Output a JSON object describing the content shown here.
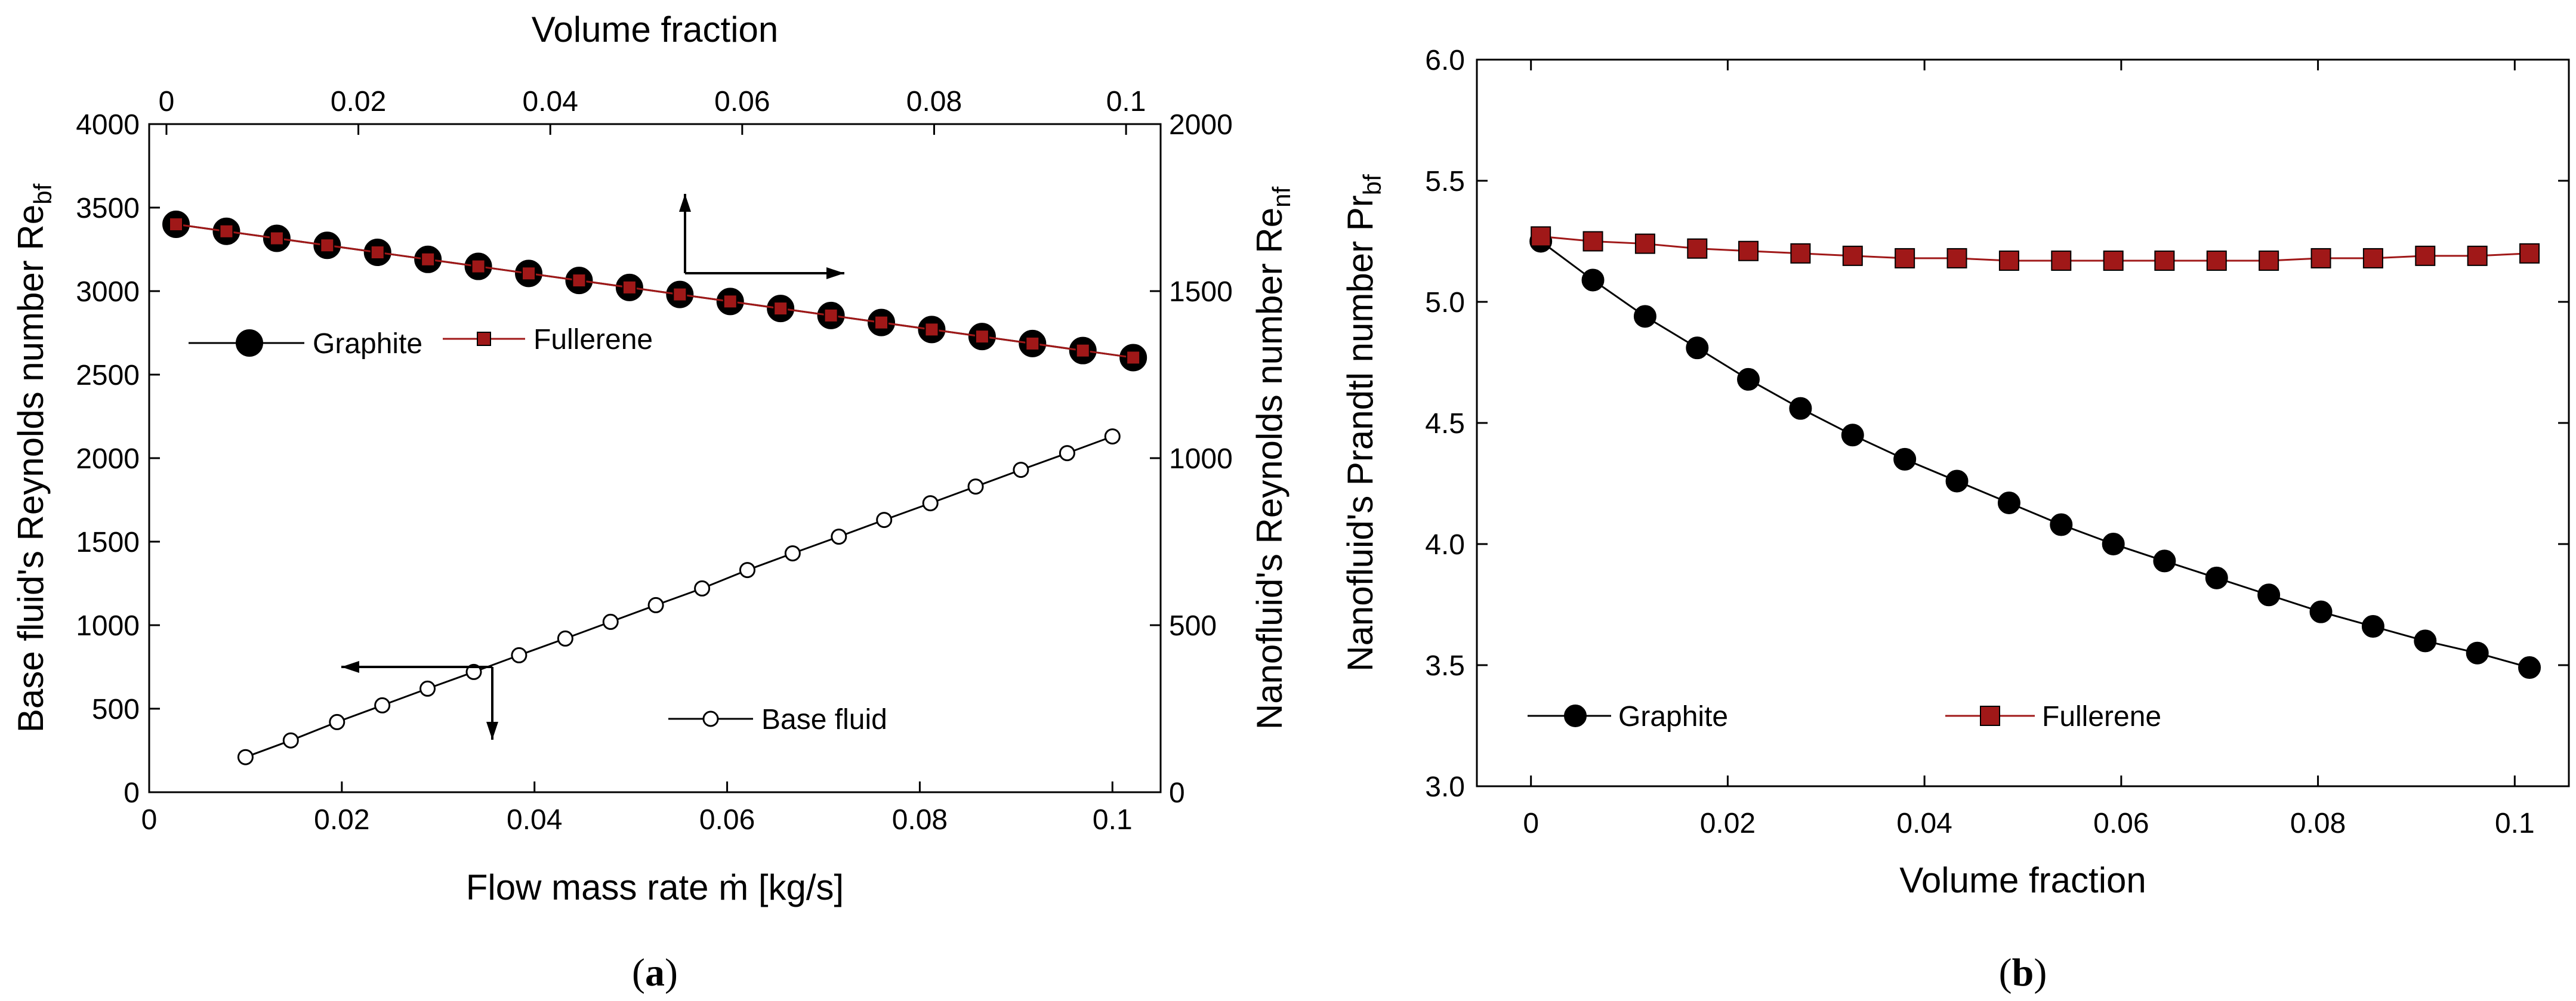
{
  "chart_data": [
    {
      "panel": "a",
      "caption_label": "a",
      "type": "line",
      "xlabel": "Flow mass rate ṁ [kg/s]",
      "x2label": "Volume fraction",
      "ylabel_left": {
        "text": "Base fluid's Reynolds number Re",
        "sub": "bf"
      },
      "ylabel_right": {
        "text": "Nanofluid's Reynolds number Re",
        "sub": "nf"
      },
      "xlim": [
        0,
        0.105
      ],
      "x2lim": [
        -0.0018,
        0.1036
      ],
      "ylim_left": [
        0,
        4000
      ],
      "ylim_right": [
        0,
        2000
      ],
      "xticks": [
        "0",
        "0.02",
        "0.04",
        "0.06",
        "0.08",
        "0.1"
      ],
      "x2ticks": [
        "0",
        "0.02",
        "0.04",
        "0.06",
        "0.08",
        "0.1"
      ],
      "yticks_left": [
        "0",
        "500",
        "1000",
        "1500",
        "2000",
        "2500",
        "3000",
        "3500",
        "4000"
      ],
      "yticks_right": [
        "0",
        "500",
        "1000",
        "1500",
        "2000"
      ],
      "series": [
        {
          "name": "Graphite",
          "axis": "right",
          "marker": "filled-circle",
          "color": "#000000",
          "x": [
            0.001,
            0.00625,
            0.0115,
            0.01675,
            0.022,
            0.02725,
            0.0325,
            0.03775,
            0.043,
            0.04825,
            0.0535,
            0.05875,
            0.064,
            0.06925,
            0.0745,
            0.07975,
            0.085,
            0.09025,
            0.0955,
            0.10075
          ],
          "y": [
            1700,
            1679,
            1658,
            1637,
            1616,
            1595,
            1574,
            1553,
            1532,
            1511,
            1490,
            1469,
            1448,
            1427,
            1406,
            1385,
            1364,
            1343,
            1322,
            1301
          ]
        },
        {
          "name": "Fullerene",
          "axis": "right",
          "marker": "filled-square",
          "color": "#a01818",
          "x": [
            0.001,
            0.00625,
            0.0115,
            0.01675,
            0.022,
            0.02725,
            0.0325,
            0.03775,
            0.043,
            0.04825,
            0.0535,
            0.05875,
            0.064,
            0.06925,
            0.0745,
            0.07975,
            0.085,
            0.09025,
            0.0955,
            0.10075
          ],
          "y": [
            1700,
            1679,
            1658,
            1637,
            1616,
            1595,
            1574,
            1553,
            1532,
            1511,
            1490,
            1469,
            1448,
            1427,
            1406,
            1385,
            1364,
            1343,
            1322,
            1301
          ]
        },
        {
          "name": "Base fluid",
          "axis": "left",
          "marker": "open-circle",
          "color": "#000000",
          "x": [
            0.01,
            0.0147,
            0.0195,
            0.0242,
            0.0289,
            0.0337,
            0.0384,
            0.0432,
            0.0479,
            0.0526,
            0.0574,
            0.0621,
            0.0668,
            0.0716,
            0.0763,
            0.0811,
            0.0858,
            0.0905,
            0.0953,
            0.1
          ],
          "y": [
            210,
            310,
            420,
            520,
            620,
            720,
            820,
            920,
            1020,
            1120,
            1220,
            1330,
            1430,
            1530,
            1630,
            1730,
            1830,
            1930,
            2030,
            2130
          ]
        }
      ],
      "legend": [
        "Graphite",
        "Fullerene",
        "Base fluid"
      ]
    },
    {
      "panel": "b",
      "caption_label": "b",
      "type": "line",
      "xlabel": "Volume fraction",
      "ylabel": {
        "text": "Nanofluid's Prandtl number Pr",
        "sub": "bf"
      },
      "xlim": [
        -0.0055,
        0.1055
      ],
      "ylim": [
        3.0,
        6.0
      ],
      "xticks": [
        "0",
        "0.02",
        "0.04",
        "0.06",
        "0.08",
        "0.1"
      ],
      "yticks": [
        "3.0",
        "3.5",
        "4.0",
        "4.5",
        "5.0",
        "5.5",
        "6.0"
      ],
      "series": [
        {
          "name": "Graphite",
          "marker": "filled-circle",
          "color": "#000000",
          "x": [
            0.001,
            0.0063,
            0.0116,
            0.0169,
            0.0221,
            0.0274,
            0.0327,
            0.038,
            0.0433,
            0.0486,
            0.0539,
            0.0592,
            0.0644,
            0.0697,
            0.075,
            0.0803,
            0.0856,
            0.0909,
            0.0962,
            0.1015
          ],
          "y": [
            5.25,
            5.09,
            4.94,
            4.81,
            4.68,
            4.56,
            4.45,
            4.35,
            4.26,
            4.17,
            4.08,
            4.0,
            3.93,
            3.86,
            3.79,
            3.72,
            3.66,
            3.6,
            3.55,
            3.49
          ]
        },
        {
          "name": "Fullerene",
          "marker": "filled-square",
          "color": "#a01818",
          "x": [
            0.001,
            0.0063,
            0.0116,
            0.0169,
            0.0221,
            0.0274,
            0.0327,
            0.038,
            0.0433,
            0.0486,
            0.0539,
            0.0592,
            0.0644,
            0.0697,
            0.075,
            0.0803,
            0.0856,
            0.0909,
            0.0962,
            0.1015
          ],
          "y": [
            5.27,
            5.25,
            5.24,
            5.22,
            5.21,
            5.2,
            5.19,
            5.18,
            5.18,
            5.17,
            5.17,
            5.17,
            5.17,
            5.17,
            5.17,
            5.18,
            5.18,
            5.19,
            5.19,
            5.2
          ]
        }
      ],
      "legend": [
        "Graphite",
        "Fullerene"
      ]
    }
  ]
}
